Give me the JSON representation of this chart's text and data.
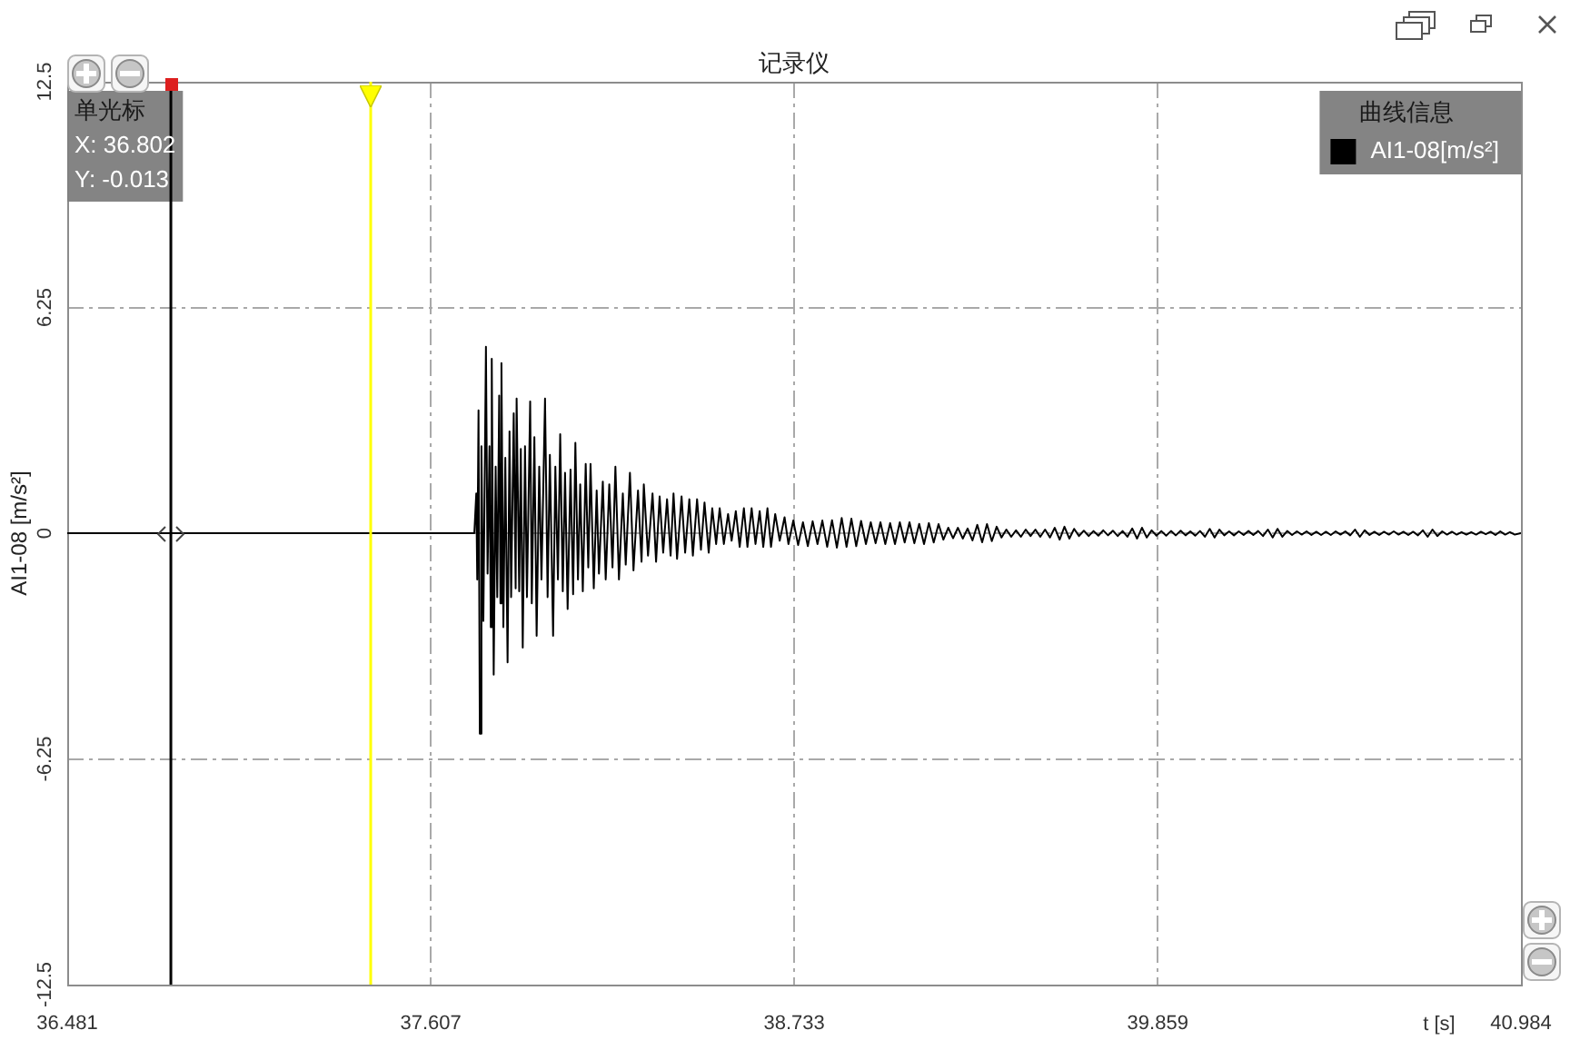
{
  "chart_data": {
    "type": "line",
    "title": "记录仪",
    "xlabel": "t [s]",
    "ylabel": "AI1-08 [m/s²]",
    "legend_title": "曲线信息",
    "annotations": [
      "单光标",
      "X: 36.802",
      "Y: -0.013"
    ],
    "x": [
      36.481,
      37.742,
      37.748,
      37.751,
      37.755,
      37.759,
      37.764,
      37.77,
      37.778,
      37.783,
      37.789,
      37.793,
      37.796,
      37.802,
      37.808,
      37.813,
      37.819,
      37.823,
      37.826,
      37.832,
      37.838,
      37.845,
      37.851,
      37.856,
      37.864,
      37.87,
      37.873,
      37.881,
      37.886,
      37.892,
      37.899,
      37.905,
      37.915,
      37.92,
      37.928,
      37.935,
      37.943,
      37.95,
      37.961,
      37.969,
      37.976,
      37.986,
      37.993,
      38.001,
      38.008,
      38.016,
      38.023,
      38.031,
      38.04,
      38.048,
      38.055,
      38.063,
      38.07,
      38.078,
      38.087,
      38.095,
      38.102,
      38.112,
      38.121,
      38.128,
      38.14,
      38.149,
      38.16,
      38.17,
      38.179,
      38.19,
      38.202,
      38.211,
      38.224,
      38.235,
      38.249,
      38.26,
      38.267,
      38.28,
      38.294,
      38.305,
      38.316,
      38.327,
      38.339,
      38.35,
      38.359,
      38.37,
      38.384,
      38.395,
      38.408,
      38.419,
      38.432,
      38.444,
      38.455,
      38.468,
      38.479,
      38.491,
      38.502,
      38.515,
      38.528,
      38.539,
      38.552,
      38.564,
      38.577,
      38.588,
      38.601,
      38.613,
      38.626,
      38.637,
      38.65,
      38.661,
      38.674,
      38.688,
      38.703,
      38.715,
      38.73,
      38.745,
      38.76,
      38.775,
      38.79,
      38.805,
      38.82,
      38.835,
      38.85,
      38.865,
      38.88,
      38.895,
      38.91,
      38.925,
      38.94,
      38.955,
      38.97,
      38.985,
      39.0,
      39.015,
      39.03,
      39.045,
      39.06,
      39.075,
      39.09,
      39.105,
      39.12,
      39.135,
      39.15,
      39.165,
      39.18,
      39.195,
      39.21,
      39.225,
      39.24,
      39.255,
      39.27,
      39.285,
      39.3,
      39.315,
      39.33,
      39.345,
      39.36,
      39.375,
      39.39,
      39.405,
      39.42,
      39.435,
      39.45,
      39.465,
      39.48,
      39.495,
      39.51,
      39.525,
      39.54,
      39.555,
      39.57,
      39.585,
      39.6,
      39.615,
      39.63,
      39.645,
      39.66,
      39.675,
      39.69,
      39.705,
      39.72,
      39.735,
      39.75,
      39.765,
      39.78,
      39.795,
      39.81,
      39.825,
      39.84,
      39.855,
      39.87,
      39.885,
      39.9,
      39.915,
      39.93,
      39.945,
      39.96,
      39.975,
      39.99,
      40.005,
      40.02,
      40.035,
      40.05,
      40.065,
      40.08,
      40.095,
      40.11,
      40.125,
      40.14,
      40.155,
      40.17,
      40.185,
      40.2,
      40.215,
      40.23,
      40.245,
      40.26,
      40.275,
      40.29,
      40.305,
      40.32,
      40.335,
      40.35,
      40.365,
      40.38,
      40.395,
      40.41,
      40.425,
      40.44,
      40.455,
      40.47,
      40.485,
      40.5,
      40.515,
      40.53,
      40.545,
      40.56,
      40.575,
      40.59,
      40.605,
      40.62,
      40.635,
      40.65,
      40.665,
      40.68,
      40.695,
      40.71,
      40.725,
      40.74,
      40.755,
      40.77,
      40.785,
      40.8,
      40.815,
      40.83,
      40.845,
      40.86,
      40.875,
      40.89,
      40.905,
      40.92,
      40.935,
      40.95,
      40.965,
      40.984
    ],
    "series": [
      {
        "name": "AI1-08[m/s²]",
        "color": "#000000",
        "values": [
          0,
          0,
          1.1,
          -1.28,
          3.4,
          -5.55,
          2.41,
          -2.43,
          5.16,
          -1.12,
          2.41,
          -2.6,
          4.83,
          -3.92,
          1.84,
          -1.77,
          3.81,
          -1.94,
          4.71,
          -2.6,
          2.09,
          -3.58,
          2.82,
          -1.77,
          3.32,
          -1.53,
          3.73,
          -1.61,
          2.33,
          -3.17,
          2.41,
          -1.77,
          3.65,
          -1.94,
          2.66,
          -2.84,
          1.84,
          -1.28,
          3.73,
          -1.77,
          2.17,
          -2.84,
          1.84,
          -1.28,
          2.74,
          -1.61,
          1.67,
          -2.1,
          1.76,
          -1.69,
          2.5,
          -1.28,
          1.35,
          -1.61,
          1.92,
          -0.95,
          1.92,
          -1.53,
          1.18,
          -1.12,
          1.43,
          -1.28,
          1.35,
          -0.95,
          1.84,
          -1.28,
          1.1,
          -0.87,
          1.67,
          -1.03,
          1.18,
          -0.79,
          1.35,
          -0.62,
          1.1,
          -0.79,
          1.02,
          -0.54,
          0.94,
          -0.62,
          1.1,
          -0.71,
          1.02,
          -0.54,
          0.94,
          -0.62,
          0.94,
          -0.46,
          0.85,
          -0.54,
          0.69,
          -0.3,
          0.69,
          -0.3,
          0.53,
          -0.21,
          0.61,
          -0.38,
          0.69,
          -0.38,
          0.69,
          -0.3,
          0.61,
          -0.38,
          0.69,
          -0.38,
          0.53,
          -0.21,
          0.44,
          -0.3,
          0.35,
          -0.33,
          0.3,
          -0.36,
          0.33,
          -0.3,
          0.35,
          -0.38,
          0.36,
          -0.4,
          0.42,
          -0.38,
          0.4,
          -0.36,
          0.34,
          -0.3,
          0.3,
          -0.28,
          0.3,
          -0.3,
          0.28,
          -0.3,
          0.3,
          -0.26,
          0.3,
          -0.28,
          0.26,
          -0.3,
          0.28,
          -0.26,
          0.25,
          -0.18,
          0.15,
          -0.14,
          0.15,
          -0.15,
          0.13,
          -0.2,
          0.23,
          -0.25,
          0.25,
          -0.22,
          0.18,
          -0.12,
          0.1,
          -0.1,
          0.08,
          -0.1,
          0.1,
          -0.08,
          0.1,
          -0.1,
          0.1,
          -0.12,
          0.15,
          -0.18,
          0.18,
          -0.15,
          0.12,
          -0.08,
          0.07,
          -0.08,
          0.06,
          -0.07,
          0.08,
          -0.06,
          0.07,
          -0.08,
          0.06,
          -0.1,
          0.13,
          -0.15,
          0.15,
          -0.12,
          0.08,
          -0.07,
          0.06,
          -0.07,
          0.06,
          -0.06,
          0.07,
          -0.06,
          0.05,
          -0.07,
          0.06,
          -0.1,
          0.12,
          -0.12,
          0.1,
          -0.06,
          0.05,
          -0.06,
          0.05,
          -0.05,
          0.06,
          -0.05,
          0.06,
          -0.08,
          0.1,
          -0.12,
          0.12,
          -0.1,
          0.06,
          -0.05,
          0.05,
          -0.04,
          0.05,
          -0.05,
          0.04,
          -0.05,
          0.04,
          -0.05,
          0.05,
          -0.04,
          0.05,
          -0.06,
          0.1,
          -0.1,
          0.08,
          -0.05,
          0.04,
          -0.05,
          0.04,
          -0.04,
          0.05,
          -0.04,
          0.04,
          -0.05,
          0.04,
          -0.06,
          0.08,
          -0.1,
          0.1,
          -0.08,
          0.05,
          -0.04,
          0.04,
          -0.04,
          0.03,
          -0.04,
          0.03,
          -0.04,
          0.04,
          -0.03,
          0.04,
          -0.05,
          0.05,
          -0.04,
          0.03,
          -0.04,
          0
        ]
      }
    ],
    "xlim": [
      36.481,
      40.984
    ],
    "xticks": [
      36.481,
      37.607,
      38.733,
      39.859,
      40.984
    ],
    "ylim": [
      -12.5,
      12.5
    ],
    "yticks": [
      -12.5,
      -6.25,
      0,
      6.25,
      12.5
    ],
    "grid": true,
    "legend": "top right",
    "ref_lines": [
      {
        "axis": "x",
        "value": 36.802,
        "color": "#000000"
      },
      {
        "axis": "x",
        "value": 37.421,
        "color": "#ffff00"
      }
    ]
  }
}
